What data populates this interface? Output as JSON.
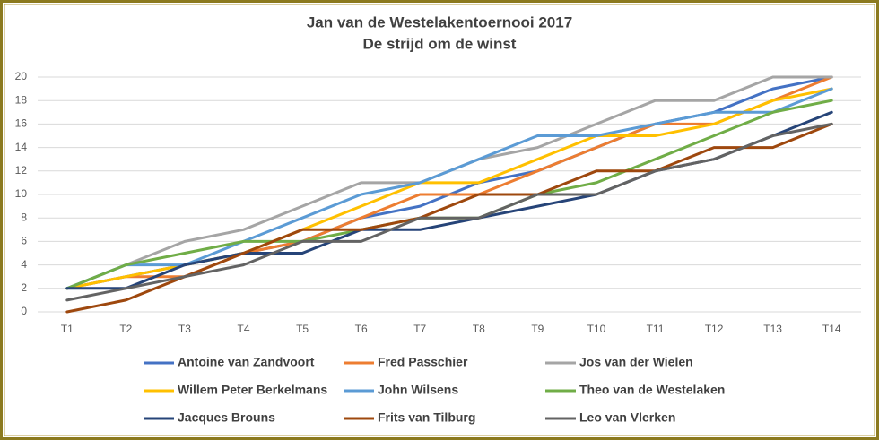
{
  "chart_data": {
    "type": "line",
    "title": "Jan van de Westelakentoernooi 2017",
    "subtitle": "De strijd om de winst",
    "categories": [
      "T1",
      "T2",
      "T3",
      "T4",
      "T5",
      "T6",
      "T7",
      "T8",
      "T9",
      "T10",
      "T11",
      "T12",
      "T13",
      "T14"
    ],
    "series": [
      {
        "name": "Antoine van Zandvoort",
        "color": "#4472c4",
        "values": [
          2,
          3,
          4,
          5,
          6,
          8,
          9,
          11,
          12,
          14,
          16,
          17,
          19,
          20
        ]
      },
      {
        "name": "Fred Passchier",
        "color": "#ed7d31",
        "values": [
          2,
          3,
          3,
          5,
          6,
          8,
          10,
          10,
          12,
          14,
          16,
          16,
          18,
          20
        ]
      },
      {
        "name": "Jos van der Wielen",
        "color": "#a5a5a5",
        "values": [
          2,
          4,
          6,
          7,
          9,
          11,
          11,
          13,
          14,
          16,
          18,
          18,
          20,
          20
        ]
      },
      {
        "name": "Willem Peter Berkelmans",
        "color": "#ffc000",
        "values": [
          2,
          3,
          4,
          5,
          7,
          9,
          11,
          11,
          13,
          15,
          15,
          16,
          18,
          19
        ]
      },
      {
        "name": "John Wilsens",
        "color": "#5b9bd5",
        "values": [
          2,
          4,
          4,
          6,
          8,
          10,
          11,
          13,
          15,
          15,
          16,
          17,
          17,
          19
        ]
      },
      {
        "name": "Theo van de Westelaken",
        "color": "#70ad47",
        "values": [
          2,
          4,
          5,
          6,
          6,
          7,
          8,
          8,
          10,
          11,
          13,
          15,
          17,
          18
        ]
      },
      {
        "name": "Jacques Brouns",
        "color": "#264478",
        "values": [
          2,
          2,
          4,
          5,
          5,
          7,
          7,
          8,
          9,
          10,
          12,
          13,
          15,
          17
        ]
      },
      {
        "name": "Frits van Tilburg",
        "color": "#9e480e",
        "values": [
          0,
          1,
          3,
          5,
          7,
          7,
          8,
          10,
          10,
          12,
          12,
          14,
          14,
          16
        ]
      },
      {
        "name": "Leo van Vlerken",
        "color": "#636363",
        "values": [
          1,
          2,
          3,
          4,
          6,
          6,
          8,
          8,
          10,
          10,
          12,
          13,
          15,
          16
        ]
      }
    ],
    "ylim": [
      0,
      20
    ],
    "yticks": [
      0,
      2,
      4,
      6,
      8,
      10,
      12,
      14,
      16,
      18,
      20
    ],
    "grid": true,
    "legend": "bottom"
  }
}
